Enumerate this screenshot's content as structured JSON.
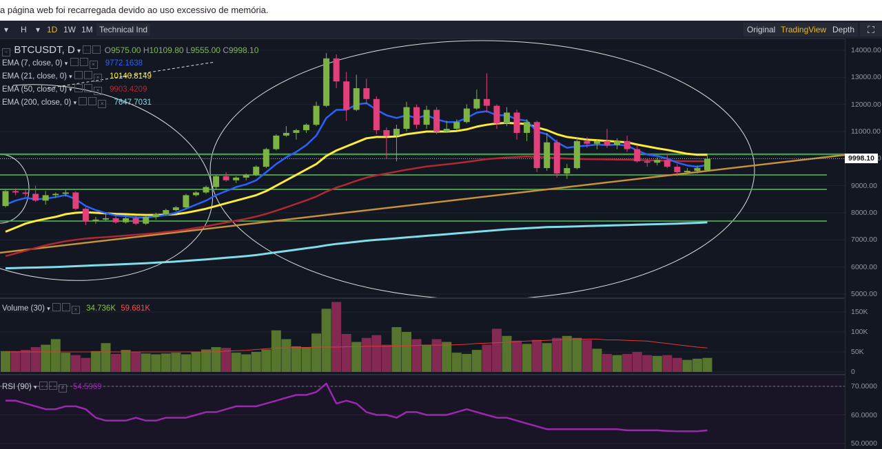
{
  "notice": {
    "text": "a página web foi recarregada devido ao uso excessivo de memória."
  },
  "toolbar": {
    "left": [
      {
        "label": "H",
        "name": "interval-h-button",
        "active": false
      },
      {
        "label": "1D",
        "name": "interval-1d-button",
        "active": true
      },
      {
        "label": "1W",
        "name": "interval-1w-button",
        "active": false
      },
      {
        "label": "1M",
        "name": "interval-1m-button",
        "active": false
      },
      {
        "label": "Technical Ind",
        "name": "technical-indicators-button",
        "active": false
      }
    ],
    "right": [
      {
        "label": "Original",
        "name": "view-original-button",
        "active": false
      },
      {
        "label": "TradingView",
        "name": "view-tradingview-button",
        "active": true
      },
      {
        "label": "Depth",
        "name": "view-depth-button",
        "active": false
      }
    ]
  },
  "symbol": {
    "name": "BTCUSDT, D",
    "o_label": "O",
    "o": "9575.00",
    "h_label": "H",
    "h": "10109.80",
    "l_label": "L",
    "l": "9555.00",
    "c_label": "C",
    "c": "9998.10"
  },
  "indicators": [
    {
      "label": "EMA (7, close, 0)",
      "value": "9772.1638",
      "color": "#2962ff"
    },
    {
      "label": "EMA (21, close, 0)",
      "value": "10140.8149",
      "color": "#ffeb3b"
    },
    {
      "label": "EMA (50, close, 0)",
      "value": "9903.4209",
      "color": "#b22833"
    },
    {
      "label": "EMA (200, close, 0)",
      "value": "7647.7031",
      "color": "#80deea"
    }
  ],
  "volume": {
    "label": "Volume (30)",
    "value1": "34.736K",
    "value2": "59.681K",
    "color1": "#8bc34a",
    "color2": "#ef5350"
  },
  "rsi": {
    "label": "RSI (90)",
    "value": "54.5969",
    "color": "#9c27b0"
  },
  "price_axis": [
    "14000.00",
    "13000.00",
    "12000.00",
    "11000.00",
    "10000.00",
    "9000.00",
    "8000.00",
    "7000.00",
    "6000.00",
    "5000.00"
  ],
  "last_price": "9998.10",
  "volume_axis": [
    "150K",
    "100K",
    "50K",
    "0"
  ],
  "rsi_axis": [
    "70.0000",
    "60.0000",
    "50.0000"
  ],
  "colors": {
    "bull": "#7cb342",
    "bear": "#e2407a",
    "background": "#131722",
    "accent": "#f0b90b"
  },
  "chart_data": {
    "type": "candlestick",
    "ylim": [
      4900,
      14300
    ],
    "candles": [
      [
        8250,
        8850,
        8200,
        8800
      ],
      [
        8800,
        8900,
        8650,
        8750
      ],
      [
        8750,
        8850,
        8600,
        8700
      ],
      [
        8700,
        9000,
        8400,
        8450
      ],
      [
        8450,
        8800,
        8300,
        8650
      ],
      [
        8650,
        8750,
        8550,
        8700
      ],
      [
        8700,
        8850,
        8600,
        8750
      ],
      [
        8750,
        8800,
        8100,
        8150
      ],
      [
        8150,
        8200,
        7550,
        7700
      ],
      [
        7700,
        7850,
        7600,
        7750
      ],
      [
        7750,
        8000,
        7700,
        7800
      ],
      [
        7800,
        7900,
        7600,
        7650
      ],
      [
        7650,
        7850,
        7600,
        7800
      ],
      [
        7800,
        7900,
        7550,
        7600
      ],
      [
        7600,
        7900,
        7550,
        7850
      ],
      [
        7850,
        8000,
        7750,
        7950
      ],
      [
        7950,
        8150,
        7900,
        8100
      ],
      [
        8100,
        8250,
        8050,
        8200
      ],
      [
        8200,
        8700,
        8150,
        8650
      ],
      [
        8650,
        8800,
        8600,
        8750
      ],
      [
        8750,
        9000,
        8700,
        8950
      ],
      [
        8950,
        9400,
        8850,
        9350
      ],
      [
        9350,
        9500,
        9150,
        9200
      ],
      [
        9200,
        9350,
        9100,
        9300
      ],
      [
        9300,
        9450,
        9200,
        9400
      ],
      [
        9400,
        9750,
        9350,
        9700
      ],
      [
        9700,
        10400,
        9650,
        10350
      ],
      [
        10350,
        10900,
        10300,
        10850
      ],
      [
        10850,
        11200,
        10800,
        10950
      ],
      [
        10950,
        11100,
        10700,
        11050
      ],
      [
        11050,
        11300,
        10950,
        11250
      ],
      [
        11250,
        12100,
        11200,
        11950
      ],
      [
        11950,
        13900,
        11900,
        13700
      ],
      [
        13700,
        13850,
        12600,
        12850
      ],
      [
        12850,
        13200,
        11400,
        11800
      ],
      [
        11800,
        13100,
        11750,
        12600
      ],
      [
        12600,
        12950,
        12000,
        12200
      ],
      [
        12200,
        12300,
        10900,
        11050
      ],
      [
        11050,
        11150,
        10000,
        10850
      ],
      [
        10850,
        11250,
        9900,
        11100
      ],
      [
        11100,
        12100,
        11000,
        11900
      ],
      [
        11900,
        12000,
        11100,
        11250
      ],
      [
        11250,
        11950,
        11100,
        11800
      ],
      [
        11800,
        11900,
        10900,
        11000
      ],
      [
        11000,
        11400,
        10950,
        11100
      ],
      [
        11100,
        11450,
        11050,
        11350
      ],
      [
        11350,
        12000,
        11300,
        11850
      ],
      [
        11850,
        12550,
        11800,
        12200
      ],
      [
        12200,
        13150,
        11700,
        11950
      ],
      [
        11950,
        12000,
        11100,
        11300
      ],
      [
        11300,
        11900,
        11200,
        11700
      ],
      [
        11700,
        11800,
        10700,
        10950
      ],
      [
        10950,
        11450,
        10650,
        11350
      ],
      [
        11350,
        11400,
        9500,
        9650
      ],
      [
        9650,
        10950,
        9550,
        10600
      ],
      [
        10600,
        10700,
        9300,
        9450
      ],
      [
        9450,
        9800,
        9250,
        9650
      ],
      [
        9650,
        10800,
        9600,
        10650
      ],
      [
        10650,
        10800,
        10400,
        10550
      ],
      [
        10550,
        10700,
        10350,
        10650
      ],
      [
        10650,
        11100,
        10400,
        10500
      ],
      [
        10500,
        10750,
        10350,
        10650
      ],
      [
        10650,
        10850,
        10250,
        10350
      ],
      [
        10350,
        10500,
        9850,
        9900
      ],
      [
        9900,
        10000,
        9700,
        9850
      ],
      [
        9850,
        10050,
        9750,
        9950
      ],
      [
        9950,
        10150,
        9650,
        9700
      ],
      [
        9700,
        9800,
        9350,
        9500
      ],
      [
        9500,
        9650,
        9450,
        9550
      ],
      [
        9550,
        9750,
        9450,
        9650
      ],
      [
        9575,
        10110,
        9555,
        9998
      ]
    ],
    "ema7": [
      8300,
      8450,
      8550,
      8500,
      8520,
      8580,
      8650,
      8500,
      8250,
      8100,
      7990,
      7900,
      7880,
      7830,
      7830,
      7860,
      7920,
      8000,
      8150,
      8300,
      8450,
      8650,
      8800,
      8950,
      9050,
      9200,
      9500,
      9800,
      10050,
      10250,
      10500,
      10850,
      11500,
      11800,
      11800,
      12000,
      12050,
      11800,
      11600,
      11500,
      11600,
      11500,
      11600,
      11450,
      11350,
      11350,
      11500,
      11700,
      11750,
      11600,
      11600,
      11450,
      11400,
      11000,
      10900,
      10600,
      10400,
      10450,
      10480,
      10520,
      10500,
      10520,
      10480,
      10300,
      10150,
      10100,
      10000,
      9850,
      9750,
      9700,
      9770
    ],
    "ema21": [
      7300,
      7450,
      7600,
      7700,
      7780,
      7850,
      7950,
      8000,
      8020,
      8000,
      7980,
      7960,
      7950,
      7930,
      7920,
      7920,
      7930,
      7950,
      8000,
      8070,
      8150,
      8250,
      8350,
      8450,
      8550,
      8650,
      8800,
      9000,
      9200,
      9400,
      9600,
      9800,
      10100,
      10300,
      10450,
      10600,
      10750,
      10800,
      10800,
      10820,
      10900,
      10950,
      11000,
      11000,
      11000,
      11020,
      11080,
      11180,
      11250,
      11300,
      11320,
      11300,
      11280,
      11150,
      11050,
      10900,
      10800,
      10750,
      10700,
      10680,
      10650,
      10630,
      10600,
      10520,
      10450,
      10380,
      10320,
      10250,
      10180,
      10140,
      10140
    ],
    "ema50": [
      6400,
      6500,
      6600,
      6700,
      6800,
      6880,
      6950,
      7000,
      7050,
      7080,
      7100,
      7130,
      7160,
      7190,
      7220,
      7250,
      7290,
      7330,
      7380,
      7440,
      7500,
      7570,
      7640,
      7710,
      7780,
      7860,
      7960,
      8080,
      8200,
      8330,
      8460,
      8600,
      8780,
      8930,
      9050,
      9180,
      9300,
      9380,
      9450,
      9520,
      9590,
      9650,
      9710,
      9750,
      9790,
      9830,
      9880,
      9930,
      9980,
      10010,
      10040,
      10060,
      10080,
      10060,
      10050,
      10020,
      10000,
      9990,
      9980,
      9975,
      9970,
      9965,
      9960,
      9950,
      9940,
      9930,
      9920,
      9910,
      9905,
      9903,
      9903
    ],
    "ema200": [
      5950,
      5960,
      5970,
      5980,
      5990,
      6000,
      6015,
      6030,
      6045,
      6060,
      6075,
      6090,
      6105,
      6120,
      6140,
      6160,
      6180,
      6200,
      6225,
      6250,
      6280,
      6310,
      6340,
      6370,
      6400,
      6440,
      6490,
      6540,
      6590,
      6640,
      6690,
      6740,
      6800,
      6850,
      6890,
      6930,
      6970,
      7000,
      7030,
      7060,
      7090,
      7120,
      7150,
      7180,
      7210,
      7240,
      7270,
      7300,
      7330,
      7360,
      7390,
      7410,
      7430,
      7450,
      7470,
      7480,
      7490,
      7500,
      7510,
      7520,
      7530,
      7540,
      7550,
      7560,
      7570,
      7580,
      7590,
      7600,
      7615,
      7630,
      7647
    ],
    "volume": [
      52,
      52,
      55,
      62,
      68,
      82,
      48,
      42,
      35,
      52,
      72,
      45,
      55,
      50,
      46,
      44,
      46,
      48,
      44,
      50,
      56,
      62,
      60,
      48,
      44,
      50,
      56,
      104,
      82,
      64,
      62,
      96,
      158,
      175,
      95,
      75,
      85,
      92,
      68,
      112,
      100,
      82,
      68,
      82,
      75,
      48,
      45,
      55,
      68,
      108,
      90,
      78,
      70,
      80,
      72,
      85,
      90,
      85,
      80,
      58,
      45,
      42,
      45,
      50,
      42,
      40,
      42,
      35,
      30,
      33,
      35
    ],
    "volume_ma": [
      50,
      50,
      50,
      50,
      50,
      50,
      50,
      50,
      50,
      50,
      50,
      50,
      50,
      50,
      50,
      50,
      50,
      50,
      50,
      50,
      50,
      50,
      52,
      53,
      54,
      56,
      58,
      60,
      60,
      61,
      61,
      62,
      62,
      62,
      63,
      63,
      64,
      64,
      64,
      65,
      65,
      66,
      67,
      67,
      67,
      68,
      69,
      71,
      72,
      73,
      74,
      76,
      77,
      78,
      79,
      80,
      81,
      81,
      82,
      82,
      80,
      80,
      79,
      78,
      77,
      74,
      71,
      68,
      65,
      62,
      60
    ],
    "rsi": [
      65,
      65,
      64,
      63,
      62,
      62,
      63,
      63,
      62,
      59,
      58,
      58,
      58,
      59,
      58,
      58,
      59,
      59,
      59,
      60,
      61,
      61,
      62,
      63,
      63,
      63,
      64,
      65,
      66,
      67,
      67,
      68,
      71,
      64,
      65,
      64,
      61,
      60,
      60,
      59,
      61,
      61,
      60,
      60,
      60,
      61,
      62,
      61,
      60,
      59,
      59,
      58,
      57,
      56,
      55,
      55,
      55,
      55,
      55,
      55,
      55,
      55,
      54.6,
      54.6,
      54.6,
      54.6,
      54.4,
      54.3,
      54.3,
      54.3,
      54.6
    ]
  }
}
